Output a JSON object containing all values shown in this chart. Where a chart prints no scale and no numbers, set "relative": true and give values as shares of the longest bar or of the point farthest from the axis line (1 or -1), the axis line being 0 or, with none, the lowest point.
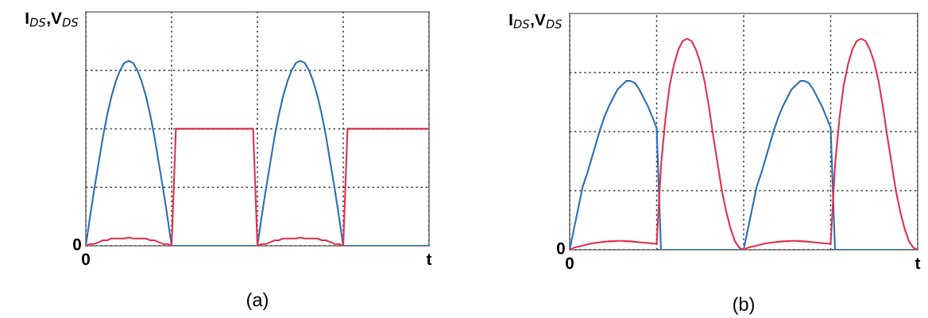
{
  "chart_data": [
    {
      "type": "line",
      "relative": true,
      "ylabel": "I$_{DS}$,V$_{DS}$",
      "annotations": [
        "0",
        "0",
        "t",
        "(a)"
      ],
      "grid": true,
      "line_style": "solid",
      "categories": [
        null,
        null,
        null,
        null,
        null,
        null,
        null,
        null,
        null,
        null,
        null,
        null,
        null,
        null,
        null,
        null,
        null,
        null,
        null,
        null,
        null,
        null,
        null,
        null,
        null,
        null,
        null,
        null,
        null,
        null,
        null,
        null,
        null,
        null,
        null,
        null,
        null,
        null,
        null,
        null,
        null,
        null,
        null,
        null,
        null,
        null,
        null,
        null,
        null,
        null,
        null,
        null,
        null,
        null,
        null,
        null,
        null,
        null,
        null,
        null,
        null,
        null,
        null,
        null,
        null,
        null,
        null,
        null,
        null,
        null,
        null,
        null,
        null,
        null,
        null,
        null,
        null,
        null,
        null,
        null,
        null
      ],
      "series": [
        {
          "color": "#2a6db5",
          "values": [
            0,
            0.16,
            0.31,
            0.45,
            0.59,
            0.71,
            0.81,
            0.89,
            0.95,
            0.99,
            1,
            0.99,
            0.95,
            0.89,
            0.81,
            0.71,
            0.59,
            0.45,
            0.31,
            0.16,
            0,
            0,
            0,
            0,
            0,
            0,
            0,
            0,
            0,
            0,
            0,
            0,
            0,
            0,
            0,
            0,
            0,
            0,
            0,
            0,
            0,
            0.16,
            0.31,
            0.45,
            0.59,
            0.71,
            0.81,
            0.89,
            0.95,
            0.99,
            1,
            0.99,
            0.95,
            0.89,
            0.81,
            0.71,
            0.59,
            0.45,
            0.31,
            0.16,
            0,
            0,
            0,
            0,
            0,
            0,
            0,
            0,
            0,
            0,
            0,
            0,
            0,
            0,
            0,
            0,
            0,
            0,
            0,
            0,
            0
          ]
        },
        {
          "color": "#e0304a",
          "values": [
            0,
            0.01,
            0.01,
            0.02,
            0.03,
            0.03,
            0.04,
            0.04,
            0.04,
            0.04,
            0.045,
            0.04,
            0.04,
            0.04,
            0.04,
            0.03,
            0.03,
            0.02,
            0.01,
            0.01,
            0,
            0.633,
            0.633,
            0.633,
            0.633,
            0.633,
            0.633,
            0.633,
            0.633,
            0.633,
            0.633,
            0.633,
            0.633,
            0.633,
            0.633,
            0.633,
            0.633,
            0.633,
            0.633,
            0.633,
            0,
            0.01,
            0.01,
            0.02,
            0.03,
            0.03,
            0.04,
            0.04,
            0.04,
            0.04,
            0.045,
            0.04,
            0.04,
            0.04,
            0.04,
            0.03,
            0.03,
            0.02,
            0.01,
            0.01,
            0,
            0.633,
            0.633,
            0.633,
            0.633,
            0.633,
            0.633,
            0.633,
            0.633,
            0.633,
            0.633,
            0.633,
            0.633,
            0.633,
            0.633,
            0.633,
            0.633,
            0.633,
            0.633,
            0.633,
            0.633
          ]
        }
      ]
    },
    {
      "type": "line",
      "relative": true,
      "ylabel": "I$_{DS}$,V$_{DS}$",
      "annotations": [
        "0",
        "0",
        "t",
        "(b)"
      ],
      "grid": true,
      "line_style": "solid",
      "categories": [
        null,
        null,
        null,
        null,
        null,
        null,
        null,
        null,
        null,
        null,
        null,
        null,
        null,
        null,
        null,
        null,
        null,
        null,
        null,
        null,
        null,
        null,
        null,
        null,
        null,
        null,
        null,
        null,
        null,
        null,
        null,
        null,
        null,
        null,
        null,
        null,
        null,
        null,
        null,
        null,
        null,
        null,
        null,
        null,
        null,
        null,
        null,
        null,
        null,
        null,
        null,
        null,
        null,
        null,
        null,
        null,
        null,
        null,
        null,
        null,
        null,
        null,
        null,
        null,
        null,
        null,
        null,
        null,
        null,
        null,
        null,
        null,
        null,
        null,
        null,
        null,
        null,
        null,
        null,
        null,
        null
      ],
      "series": [
        {
          "color": "#2a6db5",
          "values": [
            0,
            0.1,
            0.2,
            0.3,
            0.36,
            0.43,
            0.5,
            0.57,
            0.63,
            0.68,
            0.72,
            0.76,
            0.78,
            0.8,
            0.8,
            0.79,
            0.76,
            0.72,
            0.68,
            0.63,
            0.577,
            0,
            0,
            0,
            0,
            0,
            0,
            0,
            0,
            0,
            0,
            0,
            0,
            0,
            0,
            0,
            0,
            0,
            0,
            0,
            0,
            0.1,
            0.2,
            0.3,
            0.36,
            0.43,
            0.5,
            0.57,
            0.63,
            0.68,
            0.72,
            0.76,
            0.78,
            0.8,
            0.8,
            0.79,
            0.76,
            0.72,
            0.68,
            0.63,
            0.577,
            0,
            0,
            0,
            0,
            0,
            0,
            0,
            0,
            0,
            0,
            0,
            0,
            0,
            0,
            0,
            0,
            0,
            0,
            0,
            0
          ]
        },
        {
          "color": "#e0304a",
          "values": [
            0,
            0.01,
            0.015,
            0.02,
            0.025,
            0.03,
            0.033,
            0.036,
            0.038,
            0.04,
            0.041,
            0.042,
            0.042,
            0.041,
            0.04,
            0.038,
            0.036,
            0.034,
            0.032,
            0.03,
            0.028,
            0.4,
            0.62,
            0.78,
            0.88,
            0.95,
            0.99,
            1,
            0.99,
            0.95,
            0.89,
            0.8,
            0.68,
            0.54,
            0.41,
            0.28,
            0.18,
            0.1,
            0.04,
            0.01,
            0,
            0.01,
            0.015,
            0.02,
            0.025,
            0.03,
            0.033,
            0.036,
            0.038,
            0.04,
            0.041,
            0.042,
            0.042,
            0.041,
            0.04,
            0.038,
            0.036,
            0.034,
            0.032,
            0.03,
            0.028,
            0.4,
            0.62,
            0.78,
            0.88,
            0.95,
            0.99,
            1,
            0.99,
            0.95,
            0.89,
            0.8,
            0.68,
            0.54,
            0.41,
            0.28,
            0.18,
            0.1,
            0.04,
            0.01,
            0
          ]
        }
      ]
    }
  ]
}
